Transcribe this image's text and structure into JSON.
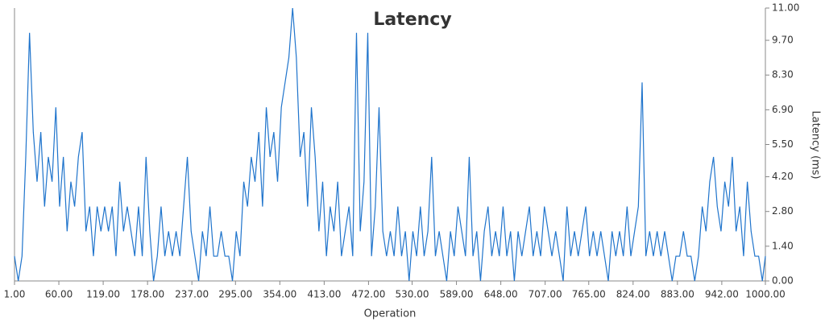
{
  "chart_data": {
    "type": "line",
    "title": "Latency",
    "x_label": "Operation",
    "y_label": "Latency (ms)",
    "color": "#1f74cc",
    "x": [
      1,
      6,
      11,
      16,
      21,
      26,
      31,
      36,
      41,
      46,
      51,
      56,
      61,
      66,
      71,
      76,
      81,
      86,
      91,
      96,
      101,
      106,
      111,
      116,
      121,
      126,
      131,
      136,
      141,
      146,
      151,
      156,
      161,
      166,
      171,
      176,
      181,
      186,
      191,
      196,
      201,
      206,
      211,
      216,
      221,
      226,
      231,
      236,
      241,
      246,
      251,
      256,
      261,
      266,
      271,
      276,
      281,
      286,
      291,
      296,
      301,
      306,
      311,
      316,
      321,
      326,
      331,
      336,
      341,
      346,
      351,
      356,
      361,
      366,
      371,
      376,
      381,
      386,
      391,
      396,
      401,
      406,
      411,
      416,
      421,
      426,
      431,
      436,
      441,
      446,
      451,
      456,
      461,
      466,
      471,
      476,
      481,
      486,
      491,
      496,
      501,
      506,
      511,
      516,
      521,
      526,
      531,
      536,
      541,
      546,
      551,
      556,
      561,
      566,
      571,
      576,
      581,
      586,
      591,
      596,
      601,
      606,
      611,
      616,
      621,
      626,
      631,
      636,
      641,
      646,
      651,
      656,
      661,
      666,
      671,
      676,
      681,
      686,
      691,
      696,
      701,
      706,
      711,
      716,
      721,
      726,
      731,
      736,
      741,
      746,
      751,
      756,
      761,
      766,
      771,
      776,
      781,
      786,
      791,
      796,
      801,
      806,
      811,
      816,
      821,
      826,
      831,
      836,
      841,
      846,
      851,
      856,
      861,
      866,
      871,
      876,
      881,
      886,
      891,
      896,
      901,
      906,
      911,
      916,
      921,
      926,
      931,
      936,
      941,
      946,
      951,
      956,
      961,
      966,
      971,
      976,
      981,
      986,
      991,
      996,
      1000
    ],
    "values": [
      1,
      0,
      1,
      5,
      10,
      6,
      4,
      6,
      3,
      5,
      4,
      7,
      3,
      5,
      2,
      4,
      3,
      5,
      6,
      2,
      3,
      1,
      3,
      2,
      3,
      2,
      3,
      1,
      4,
      2,
      3,
      2,
      1,
      3,
      1,
      5,
      2,
      0,
      1,
      3,
      1,
      2,
      1,
      2,
      1,
      3,
      5,
      2,
      1,
      0,
      2,
      1,
      3,
      1,
      1,
      2,
      1,
      1,
      0,
      2,
      1,
      4,
      3,
      5,
      4,
      6,
      3,
      7,
      5,
      6,
      4,
      7,
      8,
      9,
      11,
      9,
      5,
      6,
      3,
      7,
      5,
      2,
      4,
      1,
      3,
      2,
      4,
      1,
      2,
      3,
      1,
      10,
      2,
      4,
      10,
      1,
      3,
      7,
      2,
      1,
      2,
      1,
      3,
      1,
      2,
      0,
      2,
      1,
      3,
      1,
      2,
      5,
      1,
      2,
      1,
      0,
      2,
      1,
      3,
      2,
      1,
      5,
      1,
      2,
      0,
      2,
      3,
      1,
      2,
      1,
      3,
      1,
      2,
      0,
      2,
      1,
      2,
      3,
      1,
      2,
      1,
      3,
      2,
      1,
      2,
      1,
      0,
      3,
      1,
      2,
      1,
      2,
      3,
      1,
      2,
      1,
      2,
      1,
      0,
      2,
      1,
      2,
      1,
      3,
      1,
      2,
      3,
      8,
      1,
      2,
      1,
      2,
      1,
      2,
      1,
      0,
      1,
      1,
      2,
      1,
      1,
      0,
      1,
      3,
      2,
      4,
      5,
      3,
      2,
      4,
      3,
      5,
      2,
      3,
      1,
      4,
      2,
      1,
      1,
      0,
      1
    ],
    "xlim": [
      1,
      1000
    ],
    "xticks": [
      {
        "value": 1,
        "label": "1.00"
      },
      {
        "value": 60,
        "label": "60.00"
      },
      {
        "value": 119,
        "label": "119.00"
      },
      {
        "value": 178,
        "label": "178.00"
      },
      {
        "value": 237,
        "label": "237.00"
      },
      {
        "value": 295,
        "label": "295.00"
      },
      {
        "value": 354,
        "label": "354.00"
      },
      {
        "value": 413,
        "label": "413.00"
      },
      {
        "value": 472,
        "label": "472.00"
      },
      {
        "value": 530,
        "label": "530.00"
      },
      {
        "value": 589,
        "label": "589.00"
      },
      {
        "value": 648,
        "label": "648.00"
      },
      {
        "value": 707,
        "label": "707.00"
      },
      {
        "value": 765,
        "label": "765.00"
      },
      {
        "value": 824,
        "label": "824.00"
      },
      {
        "value": 883,
        "label": "883.00"
      },
      {
        "value": 942,
        "label": "942.00"
      },
      {
        "value": 1000,
        "label": "1000.00"
      }
    ],
    "ylim": [
      0,
      11
    ],
    "yticks": [
      {
        "value": 0,
        "label": "0.00"
      },
      {
        "value": 1.4,
        "label": "1.40"
      },
      {
        "value": 2.8,
        "label": "2.80"
      },
      {
        "value": 4.2,
        "label": "4.20"
      },
      {
        "value": 5.5,
        "label": "5.50"
      },
      {
        "value": 6.9,
        "label": "6.90"
      },
      {
        "value": 8.3,
        "label": "8.30"
      },
      {
        "value": 9.7,
        "label": "9.70"
      },
      {
        "value": 11,
        "label": "11.00"
      }
    ],
    "grid": false
  }
}
